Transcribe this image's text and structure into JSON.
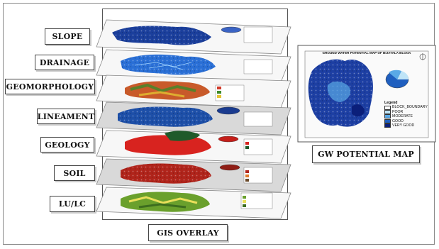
{
  "layers": [
    {
      "label": "SLOPE"
    },
    {
      "label": "DRAINAGE"
    },
    {
      "label": "GEOMORPHOLOGY"
    },
    {
      "label": "LINEAMENT"
    },
    {
      "label": "GEOLOGY"
    },
    {
      "label": "SOIL"
    },
    {
      "label": "LU/LC"
    }
  ],
  "gis_overlay_label": "GIS OVERLAY",
  "gw_potential_label": "GW POTENTIAL MAP",
  "gw_map": {
    "title": "GROUND WATER POTENTIAL MAP OF BIJATALA BLOCK",
    "legend_title": "Legend",
    "legend_items": [
      {
        "label": "BLOCK_BOUNDARY",
        "color": "#ffffff"
      },
      {
        "label": "POOR",
        "color": "#bfe4f7"
      },
      {
        "label": "MODERATE",
        "color": "#5aa9e6"
      },
      {
        "label": "GOOD",
        "color": "#1f5fbf"
      },
      {
        "label": "VERY GOOD",
        "color": "#0b1f7a"
      }
    ]
  },
  "colors": {
    "slope": "#1b3f9c",
    "drainage": "#2a6fd6",
    "geomorphology": "#c85a2a",
    "lineament": "#1d4fa8",
    "geology": "#d8231f",
    "soil": "#b0241b",
    "lulc": "#6aa02c",
    "gw": "#1d3fa3"
  }
}
